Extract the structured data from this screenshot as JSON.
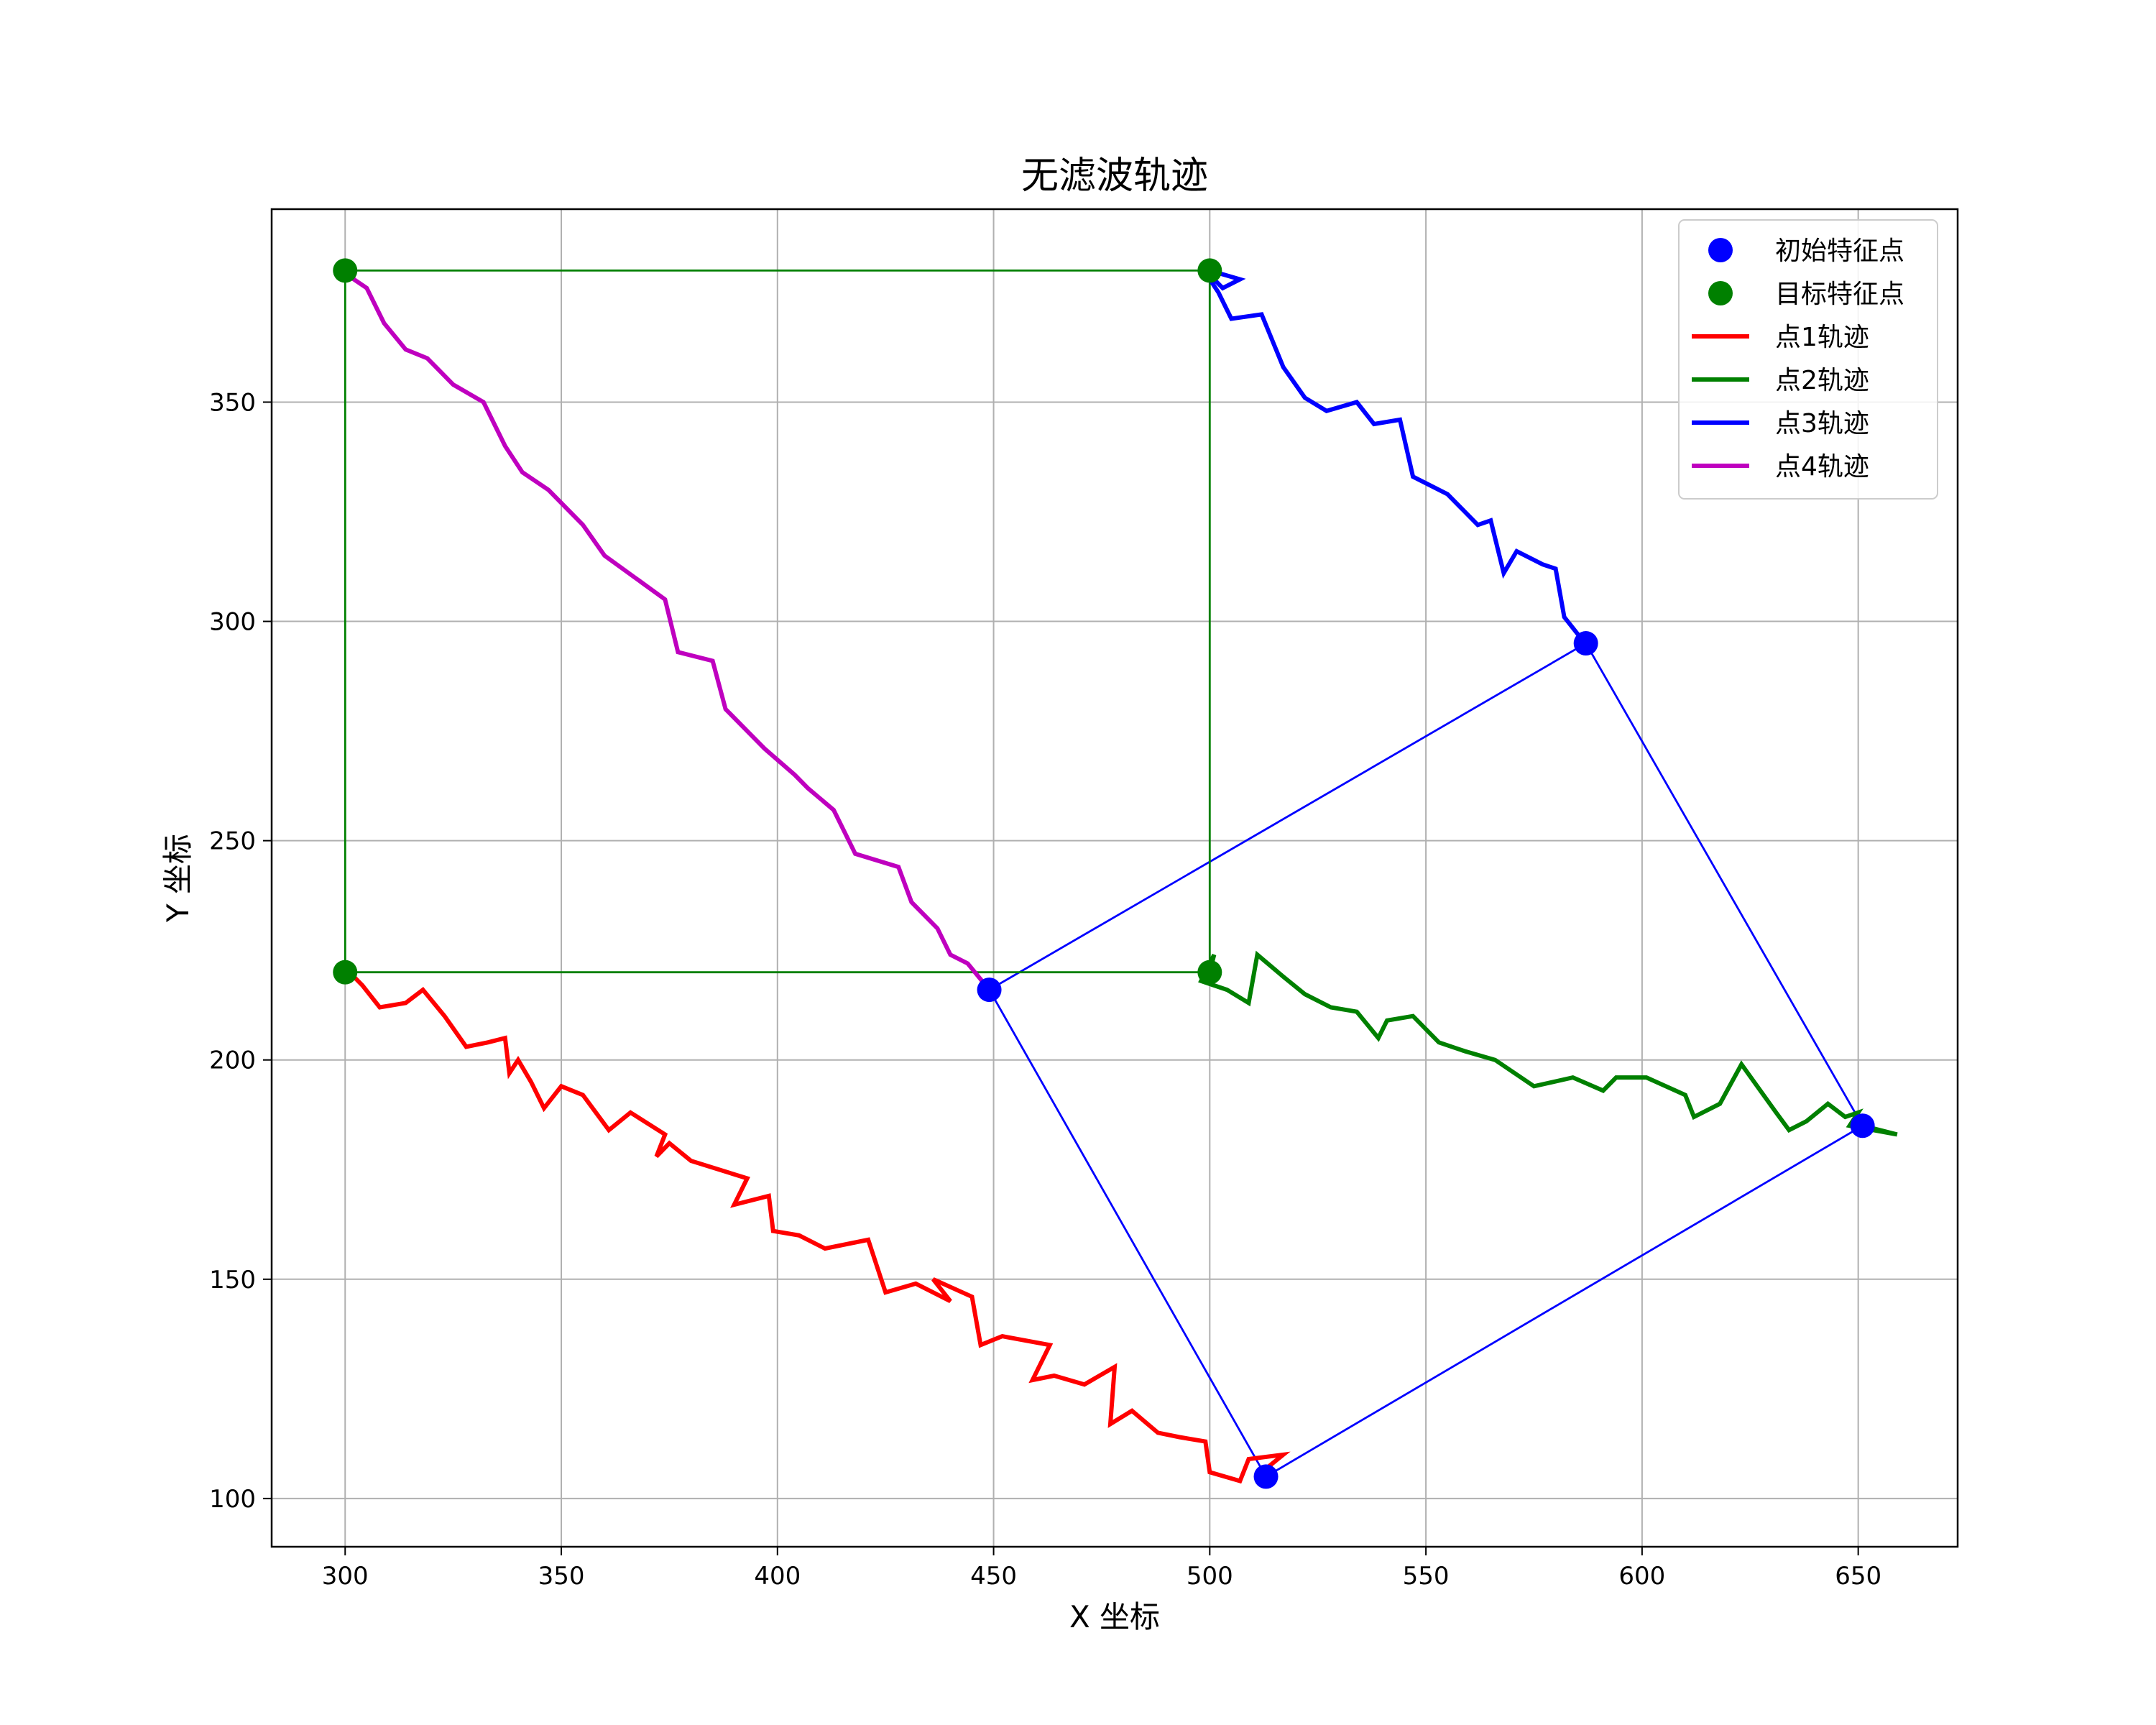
{
  "chart_data": {
    "type": "line",
    "title": "无滤波轨迹",
    "xlabel": "X 坐标",
    "ylabel": "Y 坐标",
    "xlim": [
      283,
      673
    ],
    "ylim": [
      89,
      394
    ],
    "xticks": [
      300,
      350,
      400,
      450,
      500,
      550,
      600,
      650
    ],
    "yticks": [
      100,
      150,
      200,
      250,
      300,
      350
    ],
    "grid": true,
    "legend_position": "top-right",
    "colors": {
      "initial": "#0000ff",
      "target": "#008000",
      "traj1": "#ff0000",
      "traj2": "#008000",
      "traj3": "#0000ff",
      "traj4": "#bf00bf"
    },
    "legend": [
      {
        "label": "初始特征点",
        "kind": "marker",
        "color": "#0000ff"
      },
      {
        "label": "目标特征点",
        "kind": "marker",
        "color": "#008000"
      },
      {
        "label": "点1轨迹",
        "kind": "line",
        "color": "#ff0000"
      },
      {
        "label": "点2轨迹",
        "kind": "line",
        "color": "#008000"
      },
      {
        "label": "点3轨迹",
        "kind": "line",
        "color": "#0000ff"
      },
      {
        "label": "点4轨迹",
        "kind": "line",
        "color": "#bf00bf"
      }
    ],
    "initial_points": [
      [
        513,
        105
      ],
      [
        651,
        185
      ],
      [
        587,
        295
      ],
      [
        449,
        216
      ]
    ],
    "target_points": [
      [
        300,
        220
      ],
      [
        500,
        220
      ],
      [
        500,
        380
      ],
      [
        300,
        380
      ]
    ],
    "series": [
      {
        "name": "点1轨迹",
        "color": "#ff0000",
        "points": [
          [
            513,
            105
          ],
          [
            512,
            106
          ],
          [
            517,
            110
          ],
          [
            509,
            109
          ],
          [
            507,
            104
          ],
          [
            500,
            106
          ],
          [
            499,
            113
          ],
          [
            493,
            114
          ],
          [
            488,
            115
          ],
          [
            482,
            120
          ],
          [
            477,
            117
          ],
          [
            478,
            130
          ],
          [
            471,
            126
          ],
          [
            464,
            128
          ],
          [
            459,
            127
          ],
          [
            463,
            135
          ],
          [
            452,
            137
          ],
          [
            447,
            135
          ],
          [
            445,
            146
          ],
          [
            436,
            150
          ],
          [
            440,
            145
          ],
          [
            432,
            149
          ],
          [
            425,
            147
          ],
          [
            422,
            156
          ],
          [
            421,
            159
          ],
          [
            411,
            157
          ],
          [
            405,
            160
          ],
          [
            399,
            161
          ],
          [
            398,
            169
          ],
          [
            390,
            167
          ],
          [
            393,
            173
          ],
          [
            380,
            177
          ],
          [
            375,
            181
          ],
          [
            372,
            178
          ],
          [
            374,
            183
          ],
          [
            366,
            188
          ],
          [
            361,
            184
          ],
          [
            355,
            192
          ],
          [
            350,
            194
          ],
          [
            346,
            189
          ],
          [
            343,
            195
          ],
          [
            340,
            200
          ],
          [
            338,
            197
          ],
          [
            337,
            205
          ],
          [
            333,
            204
          ],
          [
            328,
            203
          ],
          [
            323,
            210
          ],
          [
            318,
            216
          ],
          [
            314,
            213
          ],
          [
            308,
            212
          ],
          [
            304,
            217
          ],
          [
            301,
            220
          ],
          [
            300,
            220
          ]
        ]
      },
      {
        "name": "点2轨迹",
        "color": "#008000",
        "points": [
          [
            651,
            185
          ],
          [
            659,
            183
          ],
          [
            648,
            185
          ],
          [
            650,
            188
          ],
          [
            647,
            187
          ],
          [
            643,
            190
          ],
          [
            638,
            186
          ],
          [
            634,
            184
          ],
          [
            631,
            188
          ],
          [
            623,
            199
          ],
          [
            618,
            190
          ],
          [
            612,
            187
          ],
          [
            610,
            192
          ],
          [
            601,
            196
          ],
          [
            594,
            196
          ],
          [
            591,
            193
          ],
          [
            584,
            196
          ],
          [
            575,
            194
          ],
          [
            566,
            200
          ],
          [
            559,
            202
          ],
          [
            553,
            204
          ],
          [
            547,
            210
          ],
          [
            541,
            209
          ],
          [
            539,
            205
          ],
          [
            534,
            211
          ],
          [
            528,
            212
          ],
          [
            522,
            215
          ],
          [
            517,
            219
          ],
          [
            511,
            224
          ],
          [
            509,
            213
          ],
          [
            504,
            216
          ],
          [
            498,
            218
          ],
          [
            501,
            224
          ],
          [
            500,
            220
          ]
        ]
      },
      {
        "name": "点3轨迹",
        "color": "#0000ff",
        "points": [
          [
            587,
            295
          ],
          [
            586,
            296
          ],
          [
            582,
            301
          ],
          [
            580,
            312
          ],
          [
            577,
            313
          ],
          [
            571,
            316
          ],
          [
            568,
            311
          ],
          [
            565,
            323
          ],
          [
            562,
            322
          ],
          [
            555,
            329
          ],
          [
            547,
            333
          ],
          [
            544,
            346
          ],
          [
            538,
            345
          ],
          [
            534,
            350
          ],
          [
            527,
            348
          ],
          [
            522,
            351
          ],
          [
            517,
            358
          ],
          [
            512,
            370
          ],
          [
            505,
            369
          ],
          [
            502,
            375
          ],
          [
            498,
            381
          ],
          [
            503,
            376
          ],
          [
            507,
            378
          ],
          [
            500,
            380
          ]
        ]
      },
      {
        "name": "点4轨迹",
        "color": "#bf00bf",
        "points": [
          [
            449,
            216
          ],
          [
            444,
            222
          ],
          [
            440,
            224
          ],
          [
            437,
            230
          ],
          [
            431,
            236
          ],
          [
            428,
            244
          ],
          [
            418,
            247
          ],
          [
            413,
            257
          ],
          [
            407,
            262
          ],
          [
            404,
            265
          ],
          [
            397,
            271
          ],
          [
            392,
            276
          ],
          [
            388,
            280
          ],
          [
            385,
            291
          ],
          [
            377,
            293
          ],
          [
            374,
            305
          ],
          [
            367,
            310
          ],
          [
            360,
            315
          ],
          [
            355,
            322
          ],
          [
            347,
            330
          ],
          [
            341,
            334
          ],
          [
            337,
            340
          ],
          [
            332,
            350
          ],
          [
            325,
            354
          ],
          [
            319,
            360
          ],
          [
            314,
            362
          ],
          [
            309,
            368
          ],
          [
            305,
            376
          ],
          [
            302,
            378
          ],
          [
            301,
            381
          ],
          [
            300,
            380
          ]
        ]
      }
    ],
    "overlay_lines": [
      {
        "name": "initial-quad",
        "color": "#0000ff",
        "points": [
          [
            449,
            216
          ],
          [
            587,
            295
          ],
          [
            651,
            185
          ],
          [
            513,
            105
          ],
          [
            449,
            216
          ]
        ]
      },
      {
        "name": "target-rect",
        "color": "#008000",
        "points": [
          [
            300,
            220
          ],
          [
            500,
            220
          ],
          [
            500,
            380
          ],
          [
            300,
            380
          ],
          [
            300,
            220
          ]
        ]
      }
    ]
  }
}
